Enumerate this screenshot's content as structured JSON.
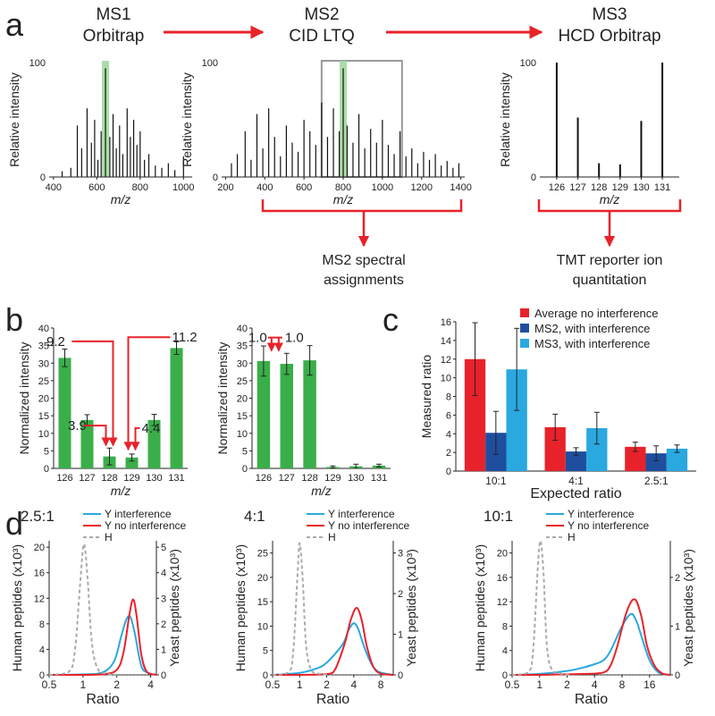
{
  "panels": {
    "a": "a",
    "b": "b",
    "c": "c",
    "d": "d"
  },
  "workflow": {
    "steps": [
      {
        "line1": "MS1",
        "line2": "Orbitrap"
      },
      {
        "line1": "MS2",
        "line2": "CID LTQ"
      },
      {
        "line1": "MS3",
        "line2": "HCD Orbitrap"
      }
    ],
    "outputs": [
      {
        "line1": "MS2 spectral",
        "line2": "assignments"
      },
      {
        "line1": "TMT reporter ion",
        "line2": "quantitation"
      }
    ]
  },
  "colors": {
    "red_arrow": "#e8222a",
    "green_bar": "#3aae49",
    "highlight": "#9dd79a",
    "no_interference": "#e8222a",
    "ms2": "#1f4e9e",
    "ms3": "#2aa8e0",
    "human": "#aaaaaa"
  },
  "chart_data": [
    {
      "id": "ms1",
      "type": "bar",
      "ylabel": "Relative intensity",
      "xlabel": "m/z",
      "xlim": [
        380,
        1040
      ],
      "ylim": [
        0,
        100
      ],
      "xticks": [
        400,
        600,
        800,
        1000
      ],
      "yticks": [
        0,
        100
      ],
      "highlight_x": 640,
      "peaks": {
        "x": [
          440,
          480,
          510,
          530,
          555,
          575,
          590,
          605,
          620,
          640,
          660,
          675,
          690,
          705,
          720,
          740,
          755,
          770,
          785,
          800,
          820,
          840,
          870,
          900,
          930,
          960,
          1000
        ],
        "y": [
          5,
          8,
          45,
          25,
          60,
          30,
          50,
          15,
          40,
          95,
          35,
          55,
          25,
          45,
          20,
          60,
          35,
          50,
          28,
          40,
          15,
          20,
          10,
          8,
          12,
          6,
          18
        ]
      }
    },
    {
      "id": "ms2",
      "type": "bar",
      "ylabel": "Relative intensity",
      "xlabel": "m/z",
      "xlim": [
        180,
        1420
      ],
      "ylim": [
        0,
        100
      ],
      "xticks": [
        200,
        400,
        600,
        800,
        1000,
        1200,
        1400
      ],
      "yticks": [
        0,
        100
      ],
      "highlight_x": 800,
      "zoom_box_x": [
        690,
        1100
      ],
      "peaks": {
        "x": [
          230,
          260,
          300,
          330,
          360,
          390,
          420,
          450,
          480,
          510,
          540,
          570,
          600,
          630,
          660,
          690,
          720,
          750,
          780,
          800,
          820,
          850,
          880,
          910,
          940,
          970,
          1000,
          1030,
          1060,
          1090,
          1120,
          1150,
          1180,
          1210,
          1240,
          1270,
          1300,
          1330,
          1360,
          1390
        ],
        "y": [
          12,
          20,
          40,
          15,
          55,
          25,
          60,
          35,
          18,
          45,
          30,
          22,
          50,
          40,
          28,
          65,
          35,
          60,
          40,
          95,
          45,
          30,
          55,
          25,
          42,
          30,
          50,
          28,
          20,
          40,
          18,
          25,
          12,
          22,
          15,
          20,
          10,
          14,
          8,
          12
        ]
      }
    },
    {
      "id": "ms3",
      "type": "bar",
      "ylabel": "Relative intensity",
      "xlabel": "m/z",
      "xlim": [
        125.2,
        131.8
      ],
      "ylim": [
        0,
        100
      ],
      "xticks": [
        126,
        127,
        128,
        129,
        130,
        131
      ],
      "yticks": [
        0,
        100
      ],
      "peaks": {
        "x": [
          126,
          127,
          128,
          129,
          130,
          131
        ],
        "y": [
          100,
          52,
          12,
          11,
          49,
          100
        ]
      }
    },
    {
      "id": "b_left",
      "type": "bar",
      "ylabel": "Normalized intensity",
      "xlabel": "m/z",
      "categories": [
        "126",
        "127",
        "128",
        "129",
        "130",
        "131"
      ],
      "values": [
        31.5,
        13.8,
        3.4,
        3.1,
        13.8,
        34.3
      ],
      "errors": [
        2.5,
        1.5,
        2.4,
        1.0,
        1.6,
        1.8
      ],
      "ylim": [
        0,
        40
      ],
      "yticks": [
        0,
        5,
        10,
        15,
        20,
        25,
        30,
        35,
        40
      ],
      "annotations": [
        "9.2",
        "3.9",
        "4.4",
        "11.2"
      ]
    },
    {
      "id": "b_right",
      "type": "bar",
      "ylabel": "Normalized intensity",
      "xlabel": "m/z",
      "categories": [
        "126",
        "127",
        "128",
        "129",
        "130",
        "131"
      ],
      "values": [
        30.6,
        29.8,
        30.8,
        0.4,
        0.6,
        0.8
      ],
      "errors": [
        4.3,
        3.0,
        4.2,
        0.3,
        0.6,
        0.4
      ],
      "ylim": [
        0,
        40
      ],
      "yticks": [
        0,
        5,
        10,
        15,
        20,
        25,
        30,
        35,
        40
      ],
      "annotations": [
        "1.0",
        "1.0"
      ]
    },
    {
      "id": "c",
      "type": "bar",
      "ylabel": "Measured ratio",
      "xlabel": "Expected ratio",
      "categories": [
        "10:1",
        "4:1",
        "2.5:1"
      ],
      "ylim": [
        0,
        16
      ],
      "yticks": [
        0,
        2,
        4,
        6,
        8,
        10,
        12,
        14,
        16
      ],
      "legend_position": "top-right",
      "series": [
        {
          "name": "Average no interference",
          "values": [
            12.0,
            4.7,
            2.6
          ],
          "errors": [
            3.9,
            1.4,
            0.5
          ]
        },
        {
          "name": "MS2, with interference",
          "values": [
            4.1,
            2.1,
            1.9
          ],
          "errors": [
            2.3,
            0.4,
            0.8
          ]
        },
        {
          "name": "MS3, with interference",
          "values": [
            10.9,
            4.6,
            2.4
          ],
          "errors": [
            4.4,
            1.7,
            0.4
          ]
        }
      ]
    },
    {
      "id": "d1",
      "type": "line",
      "title": "2.5:1",
      "xlabel": "Ratio",
      "ylabel": "Human peptides (x10³)",
      "y2label": "Yeast peptides (x10³)",
      "log_x": true,
      "xlim": [
        0.5,
        4.5
      ],
      "xticks": [
        0.5,
        1,
        2,
        4
      ],
      "ylim": [
        0,
        21
      ],
      "yticks": [
        0,
        4,
        8,
        12,
        16,
        20
      ],
      "y2lim": [
        0,
        5.25
      ],
      "y2ticks": [
        0,
        1,
        2,
        3,
        4,
        5
      ],
      "legend_position": "top-right",
      "series": [
        {
          "name": "Y interference",
          "axis": "y2",
          "x": [
            0.5,
            1.0,
            1.5,
            1.9,
            2.2,
            2.45,
            2.65,
            2.9,
            3.3,
            3.8,
            4.5
          ],
          "values": [
            0,
            0.02,
            0.1,
            0.55,
            1.55,
            2.2,
            2.25,
            1.6,
            0.35,
            0.08,
            0
          ]
        },
        {
          "name": "Y no interference",
          "axis": "y2",
          "x": [
            0.5,
            1.0,
            1.5,
            2.0,
            2.3,
            2.6,
            2.8,
            3.0,
            3.3,
            3.7,
            4.5
          ],
          "values": [
            0,
            0,
            0.02,
            0.2,
            0.9,
            2.4,
            2.95,
            2.3,
            0.8,
            0.12,
            0
          ]
        },
        {
          "name": "H",
          "axis": "y",
          "x": [
            0.5,
            0.75,
            0.85,
            0.95,
            1.02,
            1.1,
            1.2,
            1.35,
            1.6,
            2.0
          ],
          "values": [
            0,
            0.5,
            4,
            15,
            20.5,
            15,
            5,
            1,
            0.2,
            0
          ]
        }
      ]
    },
    {
      "id": "d2",
      "type": "line",
      "title": "4:1",
      "xlabel": "Ratio",
      "ylabel": "Human peptides (x10³)",
      "y2label": "Yeast peptides (x10³)",
      "log_x": true,
      "xlim": [
        0.5,
        11
      ],
      "xticks": [
        0.5,
        1,
        2,
        4,
        8
      ],
      "ylim": [
        0,
        27.5
      ],
      "yticks": [
        0,
        5,
        10,
        15,
        20,
        25
      ],
      "y2lim": [
        0,
        3.3
      ],
      "y2ticks": [
        0,
        1,
        2,
        3
      ],
      "legend_position": "top-right",
      "series": [
        {
          "name": "Y interference",
          "axis": "y2",
          "x": [
            0.5,
            1.0,
            1.5,
            2.0,
            3.0,
            3.5,
            4.0,
            4.5,
            5.2,
            6.2,
            7.5,
            11
          ],
          "values": [
            0,
            0.05,
            0.15,
            0.3,
            0.75,
            1.1,
            1.27,
            1.12,
            0.7,
            0.3,
            0.08,
            0
          ]
        },
        {
          "name": "Y no interference",
          "axis": "y2",
          "x": [
            0.5,
            1.0,
            2.0,
            2.5,
            3.2,
            3.7,
            4.3,
            4.9,
            5.6,
            6.6,
            8.0,
            11
          ],
          "values": [
            0,
            0,
            0.02,
            0.15,
            0.8,
            1.35,
            1.65,
            1.35,
            0.7,
            0.2,
            0.03,
            0
          ]
        },
        {
          "name": "H",
          "axis": "y",
          "x": [
            0.5,
            0.75,
            0.85,
            0.95,
            1.0,
            1.08,
            1.18,
            1.35,
            1.7,
            2.2
          ],
          "values": [
            0,
            0.5,
            5,
            21,
            27,
            20,
            6,
            1,
            0.2,
            0
          ]
        }
      ]
    },
    {
      "id": "d3",
      "type": "line",
      "title": "10:1",
      "xlabel": "Ratio",
      "ylabel": "Human peptides (x10³)",
      "y2label": "Yeast peptides (x10³)",
      "log_x": true,
      "xlim": [
        0.5,
        27
      ],
      "xticks": [
        0.5,
        1,
        2,
        4,
        8,
        16
      ],
      "ylim": [
        0,
        22
      ],
      "yticks": [
        0,
        4,
        8,
        12,
        16,
        20
      ],
      "y2lim": [
        0,
        2.75
      ],
      "y2ticks": [
        0,
        1,
        2
      ],
      "legend_position": "top-right",
      "series": [
        {
          "name": "Y interference",
          "axis": "y2",
          "x": [
            0.5,
            1.0,
            2.0,
            3.0,
            4.0,
            5.0,
            6.0,
            8.0,
            10.0,
            11.5,
            13.0,
            16.0,
            20.0,
            27.0
          ],
          "values": [
            0,
            0.02,
            0.08,
            0.15,
            0.22,
            0.3,
            0.5,
            1.0,
            1.25,
            1.1,
            0.8,
            0.3,
            0.05,
            0
          ]
        },
        {
          "name": "Y no interference",
          "axis": "y2",
          "x": [
            0.5,
            1.0,
            3.0,
            5.0,
            6.0,
            7.0,
            9.0,
            11.0,
            13.0,
            15.0,
            18.0,
            22.0,
            27.0
          ],
          "values": [
            0,
            0,
            0.02,
            0.05,
            0.2,
            0.55,
            1.3,
            1.55,
            1.2,
            0.6,
            0.2,
            0.03,
            0
          ]
        },
        {
          "name": "H",
          "axis": "y",
          "x": [
            0.5,
            0.75,
            0.85,
            0.95,
            1.02,
            1.1,
            1.2,
            1.35,
            1.7,
            2.2
          ],
          "values": [
            0,
            0.4,
            4,
            17,
            22,
            17,
            5,
            1,
            0.2,
            0
          ]
        }
      ]
    }
  ]
}
